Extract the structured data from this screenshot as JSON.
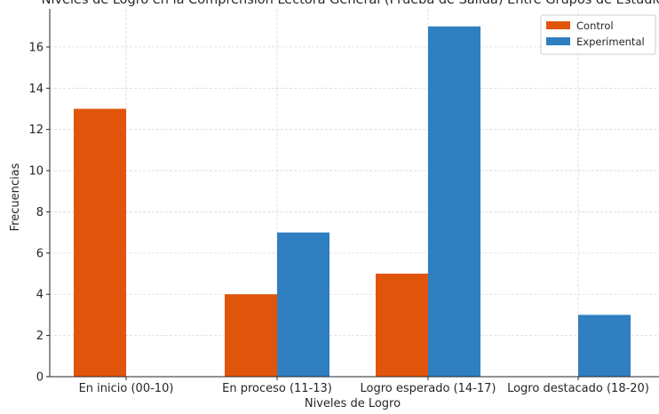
{
  "chart_data": {
    "type": "bar",
    "title": "Niveles de Logro en la Comprensión Lectora General (Prueba de Salida) Entre Grupos de Estudio",
    "xlabel": "Niveles de Logro",
    "ylabel": "Frecuencias",
    "categories": [
      "En inicio (00-10)",
      "En proceso (11-13)",
      "Logro esperado (14-17)",
      "Logro destacado (18-20)"
    ],
    "series": [
      {
        "name": "Control",
        "color": "#e1540b",
        "values": [
          13,
          4,
          5,
          0
        ]
      },
      {
        "name": "Experimental",
        "color": "#2f7fc1",
        "values": [
          0,
          7,
          17,
          3
        ]
      }
    ],
    "ylim": [
      0,
      17.85
    ],
    "yticks": [
      0,
      2,
      4,
      6,
      8,
      10,
      12,
      14,
      16
    ],
    "grid": true,
    "legend_position": "top-right"
  }
}
